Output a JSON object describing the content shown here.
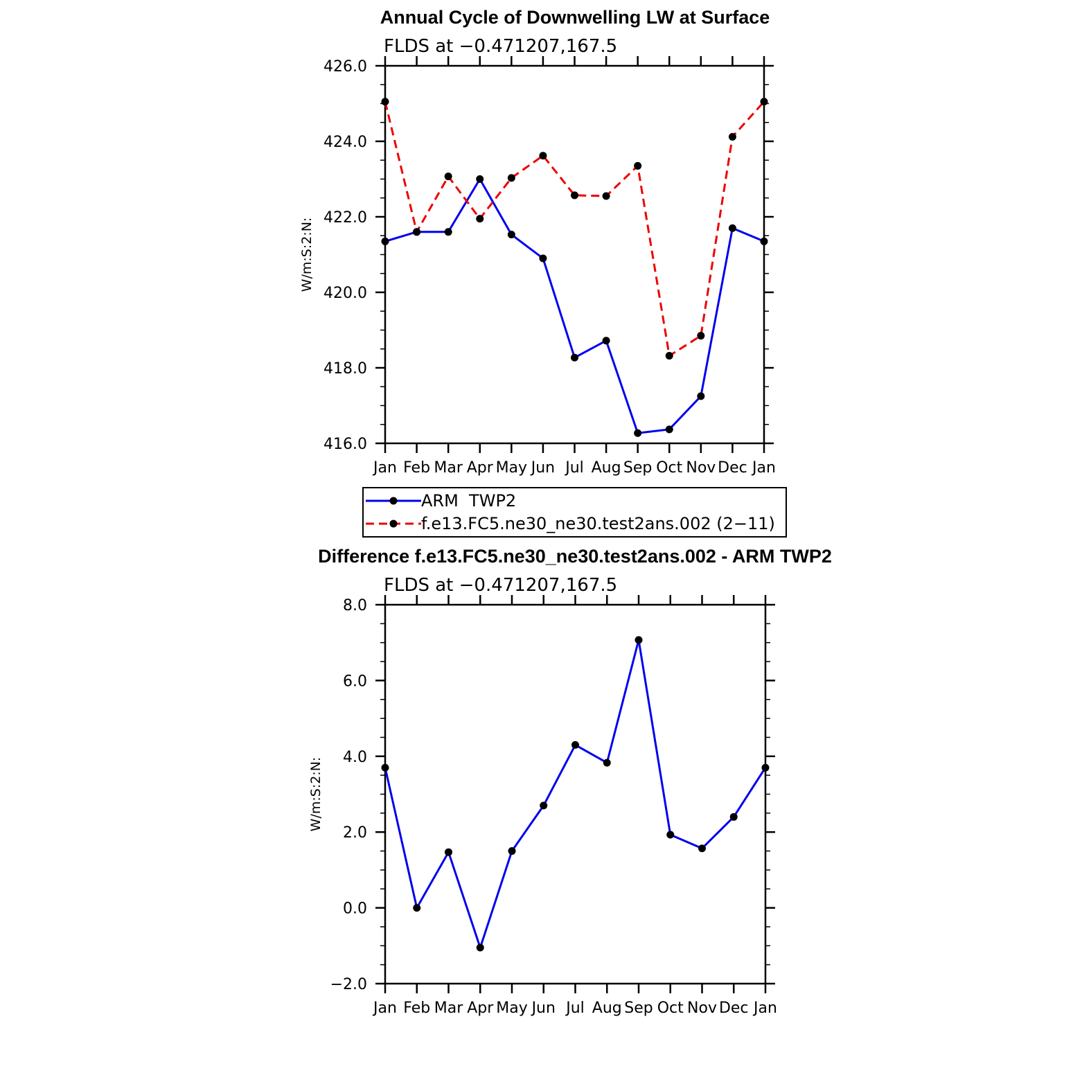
{
  "chart_data": [
    {
      "type": "line",
      "title": "Annual Cycle of Downwelling LW at Surface",
      "subtitle": "FLDS at −0.471207,167.5",
      "ylabel": "W/m:S:2:N:",
      "xlabel": "",
      "categories": [
        "Jan",
        "Feb",
        "Mar",
        "Apr",
        "May",
        "Jun",
        "Jul",
        "Aug",
        "Sep",
        "Oct",
        "Nov",
        "Dec",
        "Jan"
      ],
      "ylim": [
        416.0,
        426.0
      ],
      "yticks": [
        "416.0",
        "418.0",
        "420.0",
        "422.0",
        "424.0",
        "426.0"
      ],
      "grid": false,
      "series": [
        {
          "name": "ARM  TWP2",
          "color": "#0000ee",
          "dash": "solid",
          "values": [
            421.35,
            421.6,
            421.6,
            423.0,
            421.53,
            420.9,
            418.27,
            418.72,
            416.27,
            416.37,
            417.25,
            421.7,
            421.35
          ]
        },
        {
          "name": "f.e13.FC5.ne30_ne30.test2ans.002 (2−11)",
          "color": "#ee0000",
          "dash": "dashed",
          "values": [
            425.05,
            421.6,
            423.07,
            421.95,
            423.03,
            423.62,
            422.57,
            422.55,
            423.35,
            418.32,
            418.85,
            424.12,
            425.05
          ]
        }
      ],
      "legend": "below"
    },
    {
      "type": "line",
      "title": "Difference f.e13.FC5.ne30_ne30.test2ans.002 - ARM TWP2",
      "subtitle": "FLDS at −0.471207,167.5",
      "ylabel": "W/m:S:2:N:",
      "xlabel": "",
      "categories": [
        "Jan",
        "Feb",
        "Mar",
        "Apr",
        "May",
        "Jun",
        "Jul",
        "Aug",
        "Sep",
        "Oct",
        "Nov",
        "Dec",
        "Jan"
      ],
      "ylim": [
        -2.0,
        8.0
      ],
      "yticks": [
        "−2.0",
        "0.0",
        "2.0",
        "4.0",
        "6.0",
        "8.0"
      ],
      "grid": false,
      "series": [
        {
          "color": "#0000ee",
          "dash": "solid",
          "values": [
            3.7,
            0.0,
            1.47,
            -1.05,
            1.5,
            2.7,
            4.3,
            3.83,
            7.07,
            1.93,
            1.57,
            2.4,
            3.7
          ]
        }
      ]
    }
  ]
}
